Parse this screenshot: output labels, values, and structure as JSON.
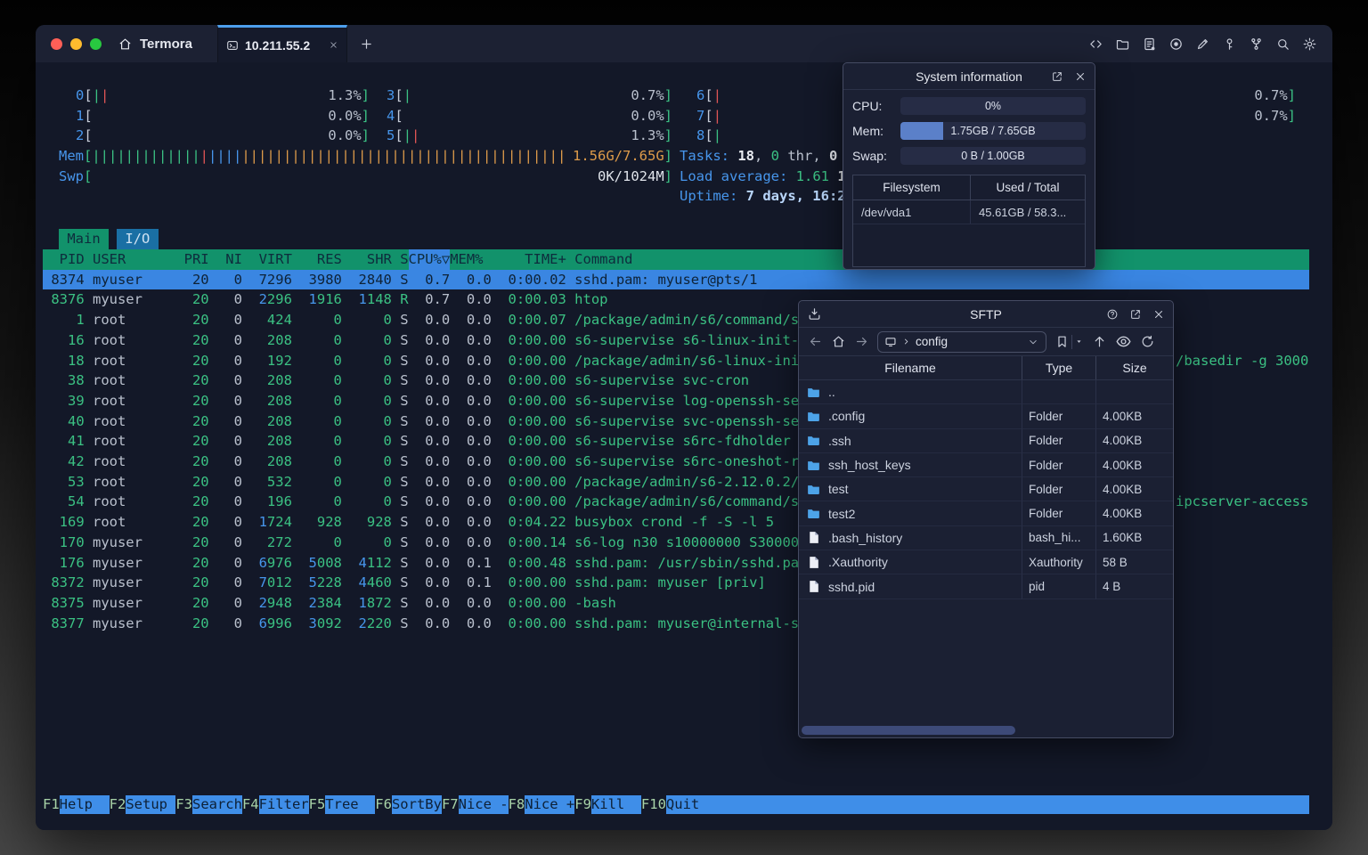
{
  "colors": {
    "accent_blue": "#4796ec",
    "terminal_green": "#3bc183",
    "terminal_orange": "#de9b4a",
    "terminal_red": "#e05555",
    "header_green_bg": "#12926b",
    "io_tab_bg": "#1a6fa4",
    "selection_blue": "#3a86e2",
    "fn_label_bg": "#3f8ee8"
  },
  "titlebar": {
    "app_label": "Termora",
    "tab_title": "10.211.55.2",
    "right_icons": [
      "code",
      "folder",
      "document",
      "record",
      "edit",
      "key",
      "branch",
      "search",
      "settings"
    ]
  },
  "terminal": {
    "cpu_meters": [
      {
        "id": "0",
        "bars": [
          "green",
          "red"
        ],
        "value": "1.3%"
      },
      {
        "id": "1",
        "bars": [],
        "value": "0.0%"
      },
      {
        "id": "2",
        "bars": [],
        "value": "0.0%"
      },
      {
        "id": "3",
        "bars": [
          "green"
        ],
        "value": "0.7%"
      },
      {
        "id": "4",
        "bars": [],
        "value": "0.0%"
      },
      {
        "id": "5",
        "bars": [
          "green",
          "red"
        ],
        "value": "1.3%"
      },
      {
        "id": "6",
        "bars": [
          "red"
        ],
        "value": "0.7%"
      },
      {
        "id": "7",
        "bars": [
          "red"
        ],
        "value": "0.7%"
      },
      {
        "id": "8",
        "bars": [
          "green"
        ],
        "value": ""
      }
    ],
    "mem_row": {
      "label": "Mem",
      "bars": [
        {
          "c": "green",
          "n": 13
        },
        {
          "c": "red",
          "n": 1
        },
        {
          "c": "blue",
          "n": 4
        },
        {
          "c": "orange",
          "n": 39
        }
      ],
      "value": "1.56G/7.65G"
    },
    "swp_row": {
      "label": "Swp",
      "value": "0K/1024M"
    },
    "info_lines": [
      {
        "segments": [
          [
            "Tasks: ",
            "blue"
          ],
          [
            "18",
            "bold"
          ],
          [
            ", ",
            "gray"
          ],
          [
            "0",
            "green"
          ],
          [
            " thr, ",
            "gray"
          ],
          [
            "0 ",
            "bold"
          ]
        ]
      },
      {
        "segments": [
          [
            "Load average: ",
            "blue"
          ],
          [
            "1.61",
            "green"
          ],
          [
            " 1",
            "bold"
          ]
        ]
      },
      {
        "segments": [
          [
            "Uptime: ",
            "blue"
          ],
          [
            "7 days, 16:2",
            "lightblue"
          ]
        ]
      }
    ],
    "view_tabs": [
      {
        "label": "Main",
        "active": true
      },
      {
        "label": "I/O",
        "active": false
      }
    ],
    "process_columns": [
      "PID",
      "USER",
      "PRI",
      "NI",
      "VIRT",
      "RES",
      "SHR",
      "S",
      "CPU%▽",
      "MEM%",
      "TIME+",
      "Command"
    ],
    "processes": [
      {
        "pid": "8374",
        "user": "myuser",
        "pri": "20",
        "ni": "0",
        "virt": "7296",
        "res": "3980",
        "shr": "2840",
        "s": "S",
        "cpu": "0.7",
        "mem": "0.0",
        "time": "0:00.02",
        "cmd": "sshd.pam: myuser@pts/1",
        "selected": true
      },
      {
        "pid": "8376",
        "user": "myuser",
        "pri": "20",
        "ni": "0",
        "virt": "2296",
        "res": "1916",
        "shr": "1148",
        "s": "R",
        "cpu": "0.7",
        "mem": "0.0",
        "time": "0:00.03",
        "cmd": "htop"
      },
      {
        "pid": "1",
        "user": "root",
        "pri": "20",
        "ni": "0",
        "virt": "424",
        "res": "0",
        "shr": "0",
        "s": "S",
        "cpu": "0.0",
        "mem": "0.0",
        "time": "0:00.07",
        "cmd": "/package/admin/s6/command/s6-"
      },
      {
        "pid": "16",
        "user": "root",
        "pri": "20",
        "ni": "0",
        "virt": "208",
        "res": "0",
        "shr": "0",
        "s": "S",
        "cpu": "0.0",
        "mem": "0.0",
        "time": "0:00.00",
        "cmd": "s6-supervise s6-linux-init-sh"
      },
      {
        "pid": "18",
        "user": "root",
        "pri": "20",
        "ni": "0",
        "virt": "192",
        "res": "0",
        "shr": "0",
        "s": "S",
        "cpu": "0.0",
        "mem": "0.0",
        "time": "0:00.00",
        "cmd": "/package/admin/s6-linux-init/"
      },
      {
        "pid": "38",
        "user": "root",
        "pri": "20",
        "ni": "0",
        "virt": "208",
        "res": "0",
        "shr": "0",
        "s": "S",
        "cpu": "0.0",
        "mem": "0.0",
        "time": "0:00.00",
        "cmd": "s6-supervise svc-cron"
      },
      {
        "pid": "39",
        "user": "root",
        "pri": "20",
        "ni": "0",
        "virt": "208",
        "res": "0",
        "shr": "0",
        "s": "S",
        "cpu": "0.0",
        "mem": "0.0",
        "time": "0:00.00",
        "cmd": "s6-supervise log-openssh-serv"
      },
      {
        "pid": "40",
        "user": "root",
        "pri": "20",
        "ni": "0",
        "virt": "208",
        "res": "0",
        "shr": "0",
        "s": "S",
        "cpu": "0.0",
        "mem": "0.0",
        "time": "0:00.00",
        "cmd": "s6-supervise svc-openssh-serv"
      },
      {
        "pid": "41",
        "user": "root",
        "pri": "20",
        "ni": "0",
        "virt": "208",
        "res": "0",
        "shr": "0",
        "s": "S",
        "cpu": "0.0",
        "mem": "0.0",
        "time": "0:00.00",
        "cmd": "s6-supervise s6rc-fdholder"
      },
      {
        "pid": "42",
        "user": "root",
        "pri": "20",
        "ni": "0",
        "virt": "208",
        "res": "0",
        "shr": "0",
        "s": "S",
        "cpu": "0.0",
        "mem": "0.0",
        "time": "0:00.00",
        "cmd": "s6-supervise s6rc-oneshot-run"
      },
      {
        "pid": "53",
        "user": "root",
        "pri": "20",
        "ni": "0",
        "virt": "532",
        "res": "0",
        "shr": "0",
        "s": "S",
        "cpu": "0.0",
        "mem": "0.0",
        "time": "0:00.00",
        "cmd": "/package/admin/s6-2.12.0.2/co"
      },
      {
        "pid": "54",
        "user": "root",
        "pri": "20",
        "ni": "0",
        "virt": "196",
        "res": "0",
        "shr": "0",
        "s": "S",
        "cpu": "0.0",
        "mem": "0.0",
        "time": "0:00.00",
        "cmd": "/package/admin/s6/command/s6-"
      },
      {
        "pid": "169",
        "user": "root",
        "pri": "20",
        "ni": "0",
        "virt": "1724",
        "res": "928",
        "shr": "928",
        "s": "S",
        "cpu": "0.0",
        "mem": "0.0",
        "time": "0:04.22",
        "cmd": "busybox crond -f -S -l 5"
      },
      {
        "pid": "170",
        "user": "myuser",
        "pri": "20",
        "ni": "0",
        "virt": "272",
        "res": "0",
        "shr": "0",
        "s": "S",
        "cpu": "0.0",
        "mem": "0.0",
        "time": "0:00.14",
        "cmd": "s6-log n30 s10000000 S3000000"
      },
      {
        "pid": "176",
        "user": "myuser",
        "pri": "20",
        "ni": "0",
        "virt": "6976",
        "res": "5008",
        "shr": "4112",
        "s": "S",
        "cpu": "0.0",
        "mem": "0.1",
        "time": "0:00.48",
        "cmd": "sshd.pam: /usr/sbin/sshd.pam"
      },
      {
        "pid": "8372",
        "user": "myuser",
        "pri": "20",
        "ni": "0",
        "virt": "7012",
        "res": "5228",
        "shr": "4460",
        "s": "S",
        "cpu": "0.0",
        "mem": "0.1",
        "time": "0:00.00",
        "cmd": "sshd.pam: myuser [priv]"
      },
      {
        "pid": "8375",
        "user": "myuser",
        "pri": "20",
        "ni": "0",
        "virt": "2948",
        "res": "2384",
        "shr": "1872",
        "s": "S",
        "cpu": "0.0",
        "mem": "0.0",
        "time": "0:00.00",
        "cmd": "-bash"
      },
      {
        "pid": "8377",
        "user": "myuser",
        "pri": "20",
        "ni": "0",
        "virt": "6996",
        "res": "3092",
        "shr": "2220",
        "s": "S",
        "cpu": "0.0",
        "mem": "0.0",
        "time": "0:00.00",
        "cmd": "sshd.pam: myuser@internal-sft"
      }
    ],
    "right_fragments": [
      {
        "text": "/basedir -g 3000",
        "row": 4
      },
      {
        "text": "ipcserver-access",
        "row": 11
      }
    ],
    "fn_keys": [
      {
        "key": "F1",
        "label": "Help"
      },
      {
        "key": "F2",
        "label": "Setup"
      },
      {
        "key": "F3",
        "label": "Search"
      },
      {
        "key": "F4",
        "label": "Filter"
      },
      {
        "key": "F5",
        "label": "Tree"
      },
      {
        "key": "F6",
        "label": "SortBy"
      },
      {
        "key": "F7",
        "label": "Nice -"
      },
      {
        "key": "F8",
        "label": "Nice +"
      },
      {
        "key": "F9",
        "label": "Kill"
      },
      {
        "key": "F10",
        "label": "Quit"
      }
    ]
  },
  "system_info": {
    "title": "System information",
    "rows": [
      {
        "label": "CPU:",
        "text": "0%",
        "fill": 0
      },
      {
        "label": "Mem:",
        "text": "1.75GB / 7.65GB",
        "fill": 23
      },
      {
        "label": "Swap:",
        "text": "0 B / 1.00GB",
        "fill": 0
      }
    ],
    "fs_table": {
      "headers": [
        "Filesystem",
        "Used / Total"
      ],
      "rows": [
        [
          "/dev/vda1",
          "45.61GB / 58.3..."
        ]
      ]
    }
  },
  "sftp": {
    "title": "SFTP",
    "path": "config",
    "columns": [
      "Filename",
      "Type",
      "Size"
    ],
    "files": [
      {
        "name": "..",
        "icon": "folder",
        "type": "",
        "size": ""
      },
      {
        "name": ".config",
        "icon": "folder",
        "type": "Folder",
        "size": "4.00KB"
      },
      {
        "name": ".ssh",
        "icon": "folder",
        "type": "Folder",
        "size": "4.00KB"
      },
      {
        "name": "ssh_host_keys",
        "icon": "folder",
        "type": "Folder",
        "size": "4.00KB"
      },
      {
        "name": "test",
        "icon": "folder",
        "type": "Folder",
        "size": "4.00KB"
      },
      {
        "name": "test2",
        "icon": "folder",
        "type": "Folder",
        "size": "4.00KB"
      },
      {
        "name": ".bash_history",
        "icon": "file",
        "type": "bash_hi...",
        "size": "1.60KB"
      },
      {
        "name": ".Xauthority",
        "icon": "file",
        "type": "Xauthority",
        "size": "58 B"
      },
      {
        "name": "sshd.pid",
        "icon": "file",
        "type": "pid",
        "size": "4 B"
      }
    ]
  }
}
